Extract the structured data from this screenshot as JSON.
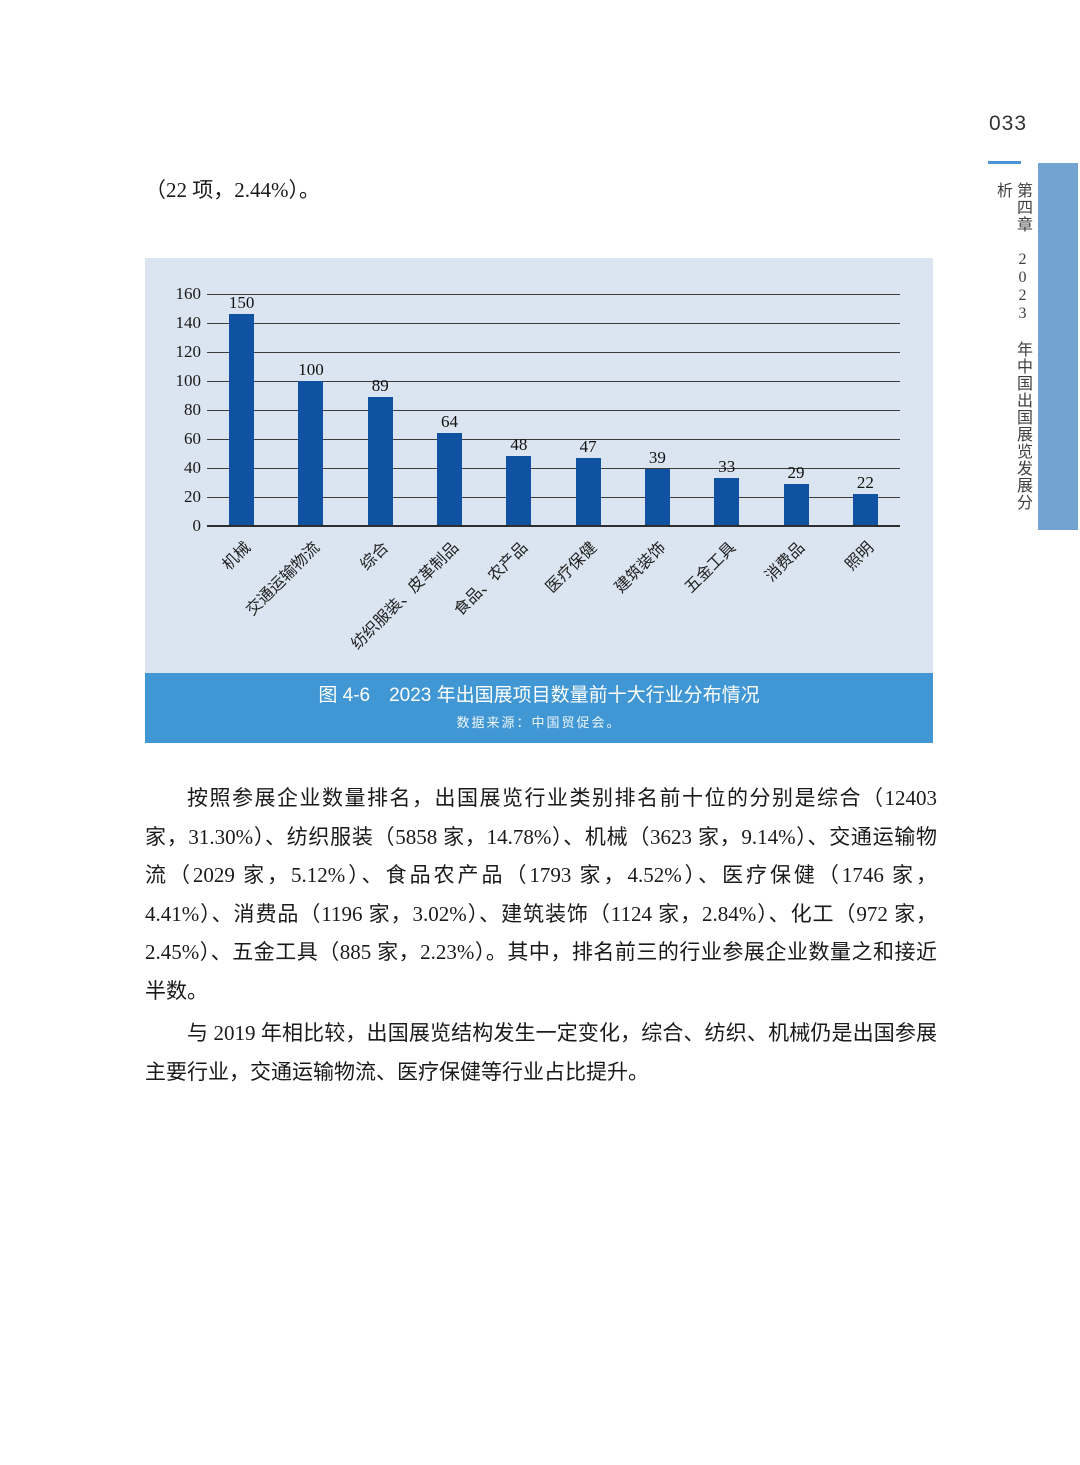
{
  "page": {
    "number": "033",
    "leading_text": "（22 项，2.44%）。",
    "chapter_label": "第四章",
    "chapter_title": "2023 年中国出国展览发展分析"
  },
  "figure": {
    "caption": "图 4-6　2023 年出国展项目数量前十大行业分布情况",
    "source": "数据来源：中国贸促会。"
  },
  "chart_data": {
    "type": "bar",
    "title": "图 4-6 2023 年出国展项目数量前十大行业分布情况",
    "categories": [
      "机械",
      "交通运输物流",
      "综合",
      "纺织服装、皮革制品",
      "食品、农产品",
      "医疗保健",
      "建筑装饰",
      "五金工具",
      "消费品",
      "照明"
    ],
    "values": [
      150,
      100,
      89,
      64,
      48,
      47,
      39,
      33,
      29,
      22
    ],
    "xlabel": "",
    "ylabel": "",
    "ylim": [
      0,
      160
    ],
    "yticks": [
      0,
      20,
      40,
      60,
      80,
      100,
      120,
      140,
      160
    ],
    "grid": true,
    "legend_position": "none",
    "bar_color": "#0f52a2",
    "panel_bg": "#dbe5f1"
  },
  "paragraphs": [
    "按照参展企业数量排名，出国展览行业类别排名前十位的分别是综合（12403 家，31.30%）、纺织服装（5858 家，14.78%）、机械（3623 家，9.14%）、交通运输物流（2029 家，5.12%）、食品农产品（1793 家，4.52%）、医疗保健（1746 家，4.41%）、消费品（1196 家，3.02%）、建筑装饰（1124 家，2.84%）、化工（972 家，2.45%）、五金工具（885 家，2.23%）。其中，排名前三的行业参展企业数量之和接近半数。",
    "与 2019 年相比较，出国展览结构发生一定变化，综合、纺织、机械仍是出国参展主要行业，交通运输物流、医疗保健等行业占比提升。"
  ],
  "colors": {
    "bar": "#0f52a2",
    "panel_bg": "#dbe5f1",
    "caption_bg": "#4197d3",
    "accent_bar": "#72a3d1",
    "page_underline": "#4b93d6"
  }
}
